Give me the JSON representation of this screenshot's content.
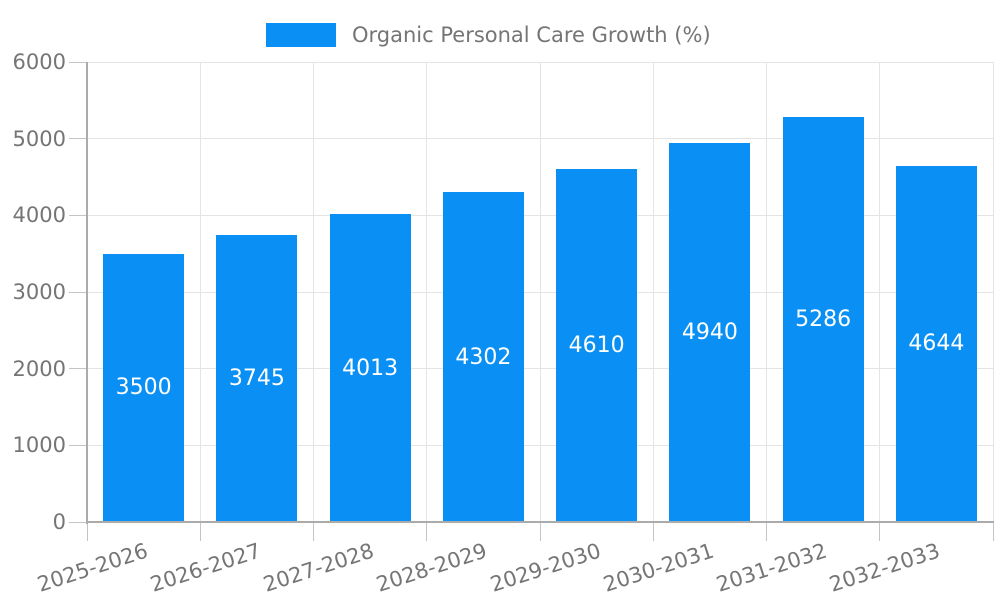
{
  "legend": {
    "label": "Organic Personal Care Growth (%)"
  },
  "colors": {
    "bar": "#0a90f5",
    "bar_label": "#ffffff",
    "grid": "#e4e4e4",
    "tick": "#c4c4c4",
    "axis": "#ababab",
    "text": "#757575",
    "background": "#ffffff"
  },
  "chart_data": {
    "type": "bar",
    "title": "Organic Personal Care Growth (%)",
    "series_name": "Organic Personal Care Growth (%)",
    "categories": [
      "2025-2026",
      "2026-2027",
      "2027-2028",
      "2028-2029",
      "2029-2030",
      "2030-2031",
      "2031-2032",
      "2032-2033"
    ],
    "values": [
      3500,
      3745,
      4013,
      4302,
      4610,
      4940,
      5286,
      4644
    ],
    "xlabel": "",
    "ylabel": "",
    "ylim": [
      0,
      6000
    ],
    "yticks": [
      0,
      1000,
      2000,
      3000,
      4000,
      5000,
      6000
    ],
    "grid": true,
    "legend_position": "top-center",
    "value_labels": "inside-center",
    "x_tick_rotation_deg": -18
  }
}
